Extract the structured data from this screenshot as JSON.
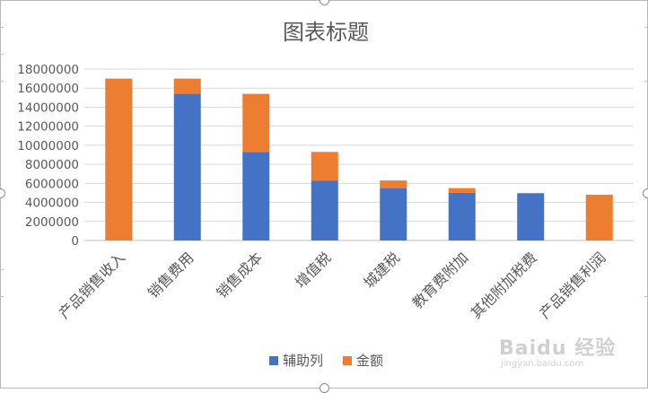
{
  "chart_data": {
    "type": "bar",
    "stacked": true,
    "title": "图表标题",
    "categories": [
      "产品销售收入",
      "销售费用",
      "销售成本",
      "增值税",
      "城建税",
      "教育费附加",
      "其他附加税费",
      "产品销售利润"
    ],
    "series": [
      {
        "name": "辅助列",
        "color": "#4472C4",
        "values": [
          0,
          15400000,
          9300000,
          6300000,
          5500000,
          5000000,
          4900000,
          0
        ]
      },
      {
        "name": "金额",
        "color": "#ED7D31",
        "values": [
          17000000,
          1600000,
          6100000,
          3000000,
          800000,
          500000,
          100000,
          4800000
        ]
      }
    ],
    "yticks": [
      0,
      2000000,
      4000000,
      6000000,
      8000000,
      10000000,
      12000000,
      14000000,
      16000000,
      18000000
    ],
    "ylim": [
      0,
      18000000
    ],
    "grid": true,
    "legend": "bottom"
  },
  "watermark": {
    "brand": "Baidu 经验",
    "url": "jingyan.baidu.com"
  }
}
